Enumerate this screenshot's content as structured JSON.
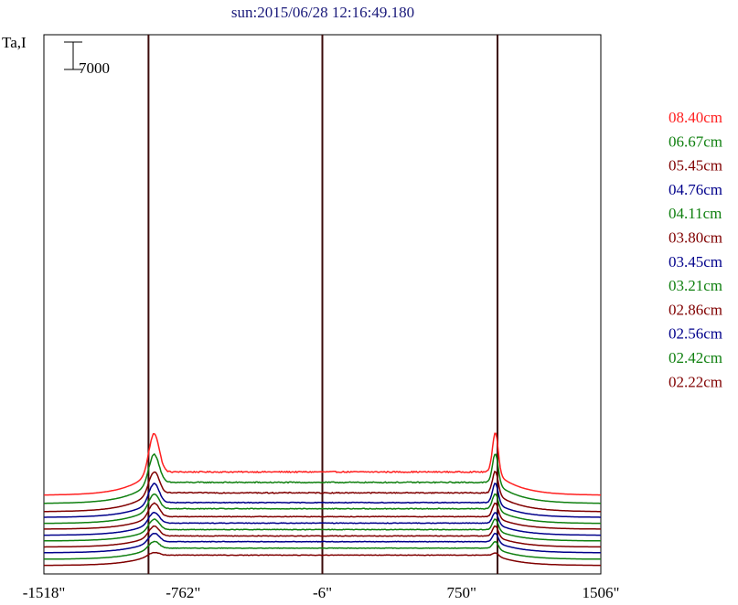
{
  "chart_data": {
    "type": "line",
    "title": "sun:2015/06/28 12:16:49.180",
    "ylabel": "Ta,I",
    "scale_bar_label": "7000",
    "scale_bar_value": 7000,
    "xlim": [
      -1518,
      1506
    ],
    "x_ticks": [
      {
        "value": -1518,
        "label": "-1518\""
      },
      {
        "value": -762,
        "label": "-762\""
      },
      {
        "value": -6,
        "label": "-6\""
      },
      {
        "value": 750,
        "label": "750\""
      },
      {
        "value": 1506,
        "label": "1506\""
      }
    ],
    "vertical_lines": [
      -950,
      -6,
      945
    ],
    "vertical_line_color": "#3b0a0a",
    "series": [
      {
        "name": "08.40cm",
        "color": "#ff2020",
        "offset": 20090,
        "limb_peak": 10100,
        "disk_level": 5950
      },
      {
        "name": "06.67cm",
        "color": "#108010",
        "offset": 17980,
        "limb_peak": 7430,
        "disk_level": 5390
      },
      {
        "name": "05.45cm",
        "color": "#800000",
        "offset": 15880,
        "limb_peak": 5570,
        "disk_level": 4830
      },
      {
        "name": "04.76cm",
        "color": "#00008b",
        "offset": 14430,
        "limb_peak": 5020,
        "disk_level": 3780
      },
      {
        "name": "04.11cm",
        "color": "#108010",
        "offset": 12870,
        "limb_peak": 3920,
        "disk_level": 3780
      },
      {
        "name": "03.80cm",
        "color": "#800000",
        "offset": 11420,
        "limb_peak": 3580,
        "disk_level": 3210
      },
      {
        "name": "03.45cm",
        "color": "#00008b",
        "offset": 9860,
        "limb_peak": 2870,
        "disk_level": 3110
      },
      {
        "name": "03.21cm",
        "color": "#108010",
        "offset": 8410,
        "limb_peak": 2760,
        "disk_level": 2910
      },
      {
        "name": "02.86cm",
        "color": "#800000",
        "offset": 6860,
        "limb_peak": 2640,
        "disk_level": 2840
      },
      {
        "name": "02.56cm",
        "color": "#00008b",
        "offset": 5400,
        "limb_peak": 2250,
        "disk_level": 2840
      },
      {
        "name": "02.42cm",
        "color": "#108010",
        "offset": 3740,
        "limb_peak": 1840,
        "disk_level": 2840
      },
      {
        "name": "02.22cm",
        "color": "#800000",
        "offset": 2160,
        "limb_peak": 780,
        "disk_level": 2640
      }
    ],
    "grid": false,
    "legend_position": "right"
  }
}
